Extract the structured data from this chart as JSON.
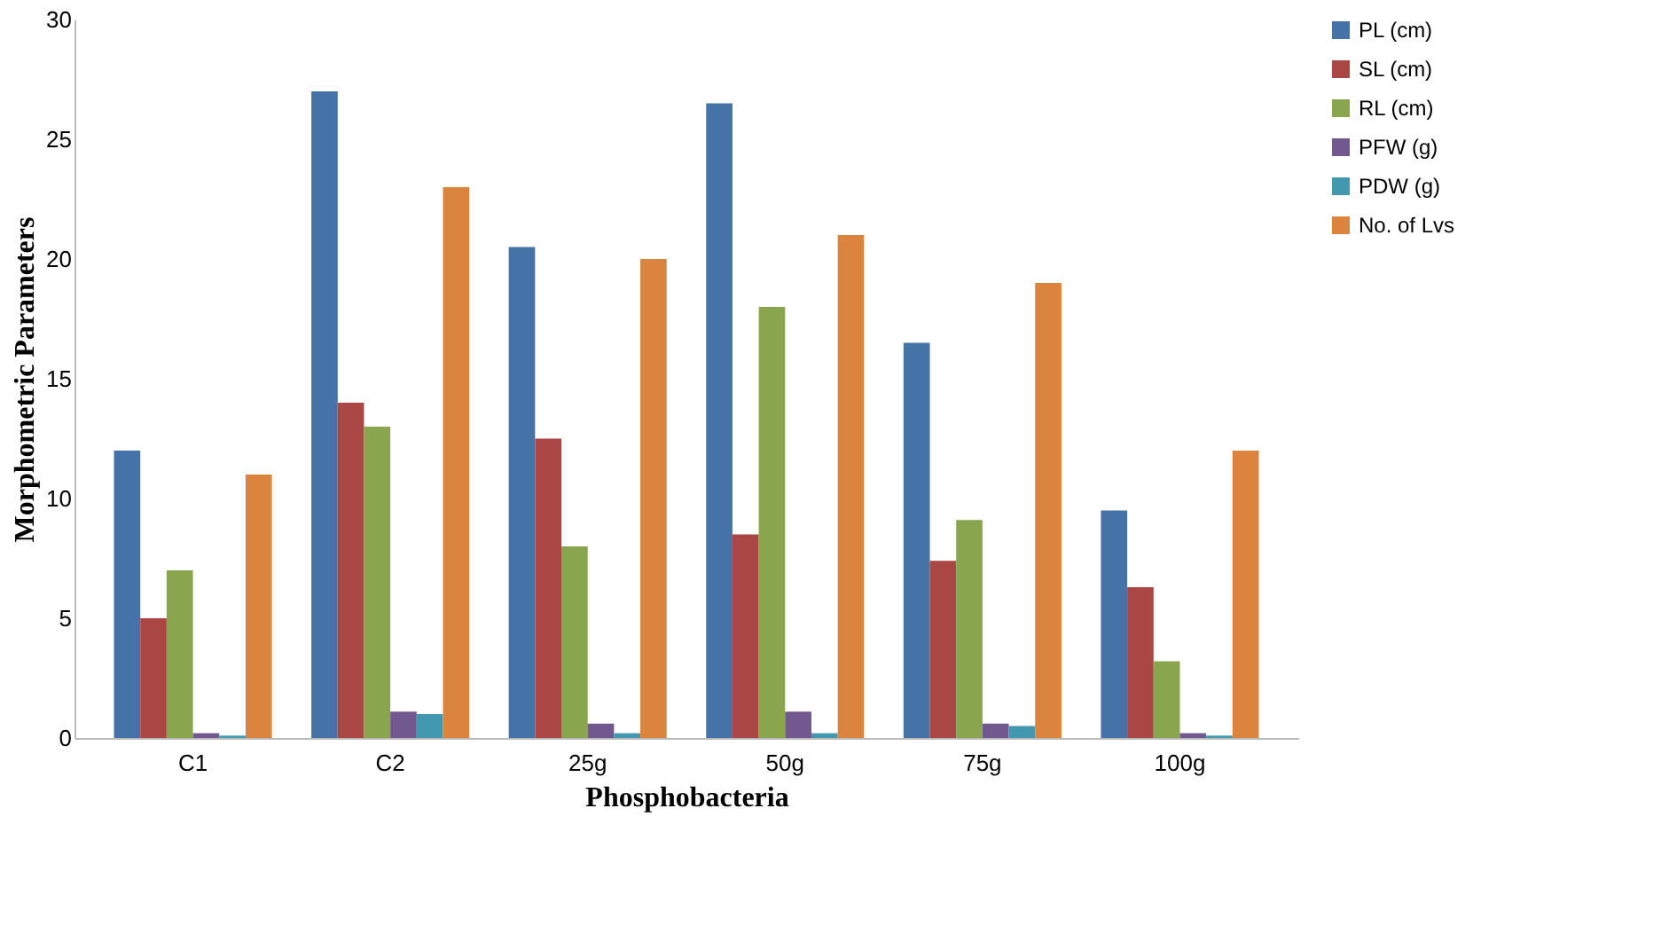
{
  "chart_data": {
    "type": "bar",
    "xlabel": "Phosphobacteria",
    "ylabel": "Morphometric Parameters",
    "categories": [
      "C1",
      "C2",
      "25g",
      "50g",
      "75g",
      "100g"
    ],
    "series": [
      {
        "name": "PL  (cm)",
        "color": "#4573a7",
        "values": [
          12,
          27,
          20.5,
          26.5,
          16.5,
          9.5
        ]
      },
      {
        "name": "SL (cm)",
        "color": "#aa4643",
        "values": [
          5,
          14,
          12.5,
          8.5,
          7.4,
          6.3
        ]
      },
      {
        "name": "RL   (cm)",
        "color": "#89a54e",
        "values": [
          7,
          13,
          8,
          18,
          9.1,
          3.2
        ]
      },
      {
        "name": "PFW (g)",
        "color": "#71588f",
        "values": [
          0.2,
          1.1,
          0.6,
          1.1,
          0.6,
          0.2
        ]
      },
      {
        "name": "PDW (g)",
        "color": "#4198af",
        "values": [
          0.1,
          1.0,
          0.2,
          0.2,
          0.5,
          0.1
        ]
      },
      {
        "name": "No. of Lvs",
        "color": "#db843d",
        "values": [
          11,
          23,
          20,
          21,
          19,
          12
        ]
      }
    ],
    "ylim": [
      0,
      30
    ],
    "yticks": [
      0,
      5,
      10,
      15,
      20,
      25,
      30
    ],
    "grid": false,
    "legend": "right"
  }
}
